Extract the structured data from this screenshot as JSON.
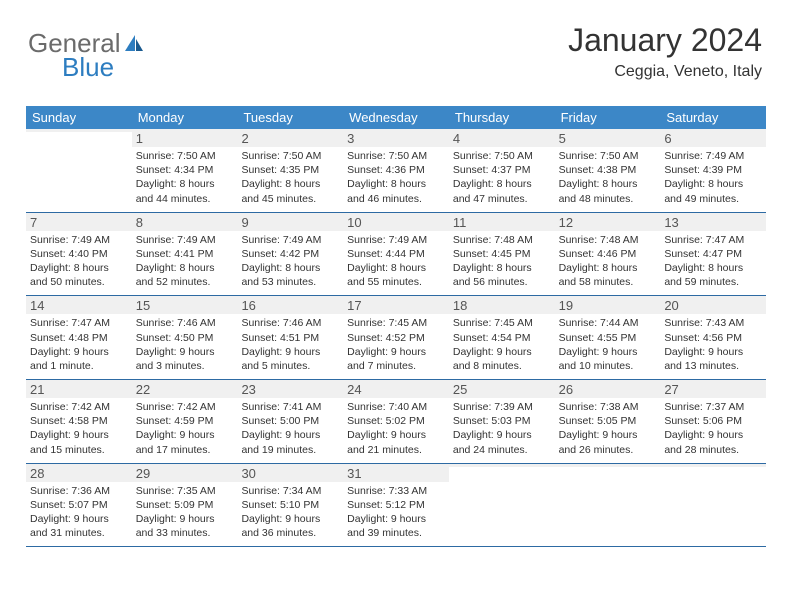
{
  "logo": {
    "text1": "General",
    "text2": "Blue"
  },
  "title": "January 2024",
  "location": "Ceggia, Veneto, Italy",
  "colors": {
    "header_bg": "#3c87c7",
    "header_text": "#ffffff",
    "border": "#2d6aa3",
    "daynum_bg": "#f0f0f0",
    "text": "#333333",
    "logo_gray": "#6b6b6b",
    "logo_blue": "#2d7dc0"
  },
  "day_names": [
    "Sunday",
    "Monday",
    "Tuesday",
    "Wednesday",
    "Thursday",
    "Friday",
    "Saturday"
  ],
  "weeks": [
    [
      {
        "n": "",
        "sr": "",
        "ss": "",
        "dl": ""
      },
      {
        "n": "1",
        "sr": "Sunrise: 7:50 AM",
        "ss": "Sunset: 4:34 PM",
        "dl": "Daylight: 8 hours and 44 minutes."
      },
      {
        "n": "2",
        "sr": "Sunrise: 7:50 AM",
        "ss": "Sunset: 4:35 PM",
        "dl": "Daylight: 8 hours and 45 minutes."
      },
      {
        "n": "3",
        "sr": "Sunrise: 7:50 AM",
        "ss": "Sunset: 4:36 PM",
        "dl": "Daylight: 8 hours and 46 minutes."
      },
      {
        "n": "4",
        "sr": "Sunrise: 7:50 AM",
        "ss": "Sunset: 4:37 PM",
        "dl": "Daylight: 8 hours and 47 minutes."
      },
      {
        "n": "5",
        "sr": "Sunrise: 7:50 AM",
        "ss": "Sunset: 4:38 PM",
        "dl": "Daylight: 8 hours and 48 minutes."
      },
      {
        "n": "6",
        "sr": "Sunrise: 7:49 AM",
        "ss": "Sunset: 4:39 PM",
        "dl": "Daylight: 8 hours and 49 minutes."
      }
    ],
    [
      {
        "n": "7",
        "sr": "Sunrise: 7:49 AM",
        "ss": "Sunset: 4:40 PM",
        "dl": "Daylight: 8 hours and 50 minutes."
      },
      {
        "n": "8",
        "sr": "Sunrise: 7:49 AM",
        "ss": "Sunset: 4:41 PM",
        "dl": "Daylight: 8 hours and 52 minutes."
      },
      {
        "n": "9",
        "sr": "Sunrise: 7:49 AM",
        "ss": "Sunset: 4:42 PM",
        "dl": "Daylight: 8 hours and 53 minutes."
      },
      {
        "n": "10",
        "sr": "Sunrise: 7:49 AM",
        "ss": "Sunset: 4:44 PM",
        "dl": "Daylight: 8 hours and 55 minutes."
      },
      {
        "n": "11",
        "sr": "Sunrise: 7:48 AM",
        "ss": "Sunset: 4:45 PM",
        "dl": "Daylight: 8 hours and 56 minutes."
      },
      {
        "n": "12",
        "sr": "Sunrise: 7:48 AM",
        "ss": "Sunset: 4:46 PM",
        "dl": "Daylight: 8 hours and 58 minutes."
      },
      {
        "n": "13",
        "sr": "Sunrise: 7:47 AM",
        "ss": "Sunset: 4:47 PM",
        "dl": "Daylight: 8 hours and 59 minutes."
      }
    ],
    [
      {
        "n": "14",
        "sr": "Sunrise: 7:47 AM",
        "ss": "Sunset: 4:48 PM",
        "dl": "Daylight: 9 hours and 1 minute."
      },
      {
        "n": "15",
        "sr": "Sunrise: 7:46 AM",
        "ss": "Sunset: 4:50 PM",
        "dl": "Daylight: 9 hours and 3 minutes."
      },
      {
        "n": "16",
        "sr": "Sunrise: 7:46 AM",
        "ss": "Sunset: 4:51 PM",
        "dl": "Daylight: 9 hours and 5 minutes."
      },
      {
        "n": "17",
        "sr": "Sunrise: 7:45 AM",
        "ss": "Sunset: 4:52 PM",
        "dl": "Daylight: 9 hours and 7 minutes."
      },
      {
        "n": "18",
        "sr": "Sunrise: 7:45 AM",
        "ss": "Sunset: 4:54 PM",
        "dl": "Daylight: 9 hours and 8 minutes."
      },
      {
        "n": "19",
        "sr": "Sunrise: 7:44 AM",
        "ss": "Sunset: 4:55 PM",
        "dl": "Daylight: 9 hours and 10 minutes."
      },
      {
        "n": "20",
        "sr": "Sunrise: 7:43 AM",
        "ss": "Sunset: 4:56 PM",
        "dl": "Daylight: 9 hours and 13 minutes."
      }
    ],
    [
      {
        "n": "21",
        "sr": "Sunrise: 7:42 AM",
        "ss": "Sunset: 4:58 PM",
        "dl": "Daylight: 9 hours and 15 minutes."
      },
      {
        "n": "22",
        "sr": "Sunrise: 7:42 AM",
        "ss": "Sunset: 4:59 PM",
        "dl": "Daylight: 9 hours and 17 minutes."
      },
      {
        "n": "23",
        "sr": "Sunrise: 7:41 AM",
        "ss": "Sunset: 5:00 PM",
        "dl": "Daylight: 9 hours and 19 minutes."
      },
      {
        "n": "24",
        "sr": "Sunrise: 7:40 AM",
        "ss": "Sunset: 5:02 PM",
        "dl": "Daylight: 9 hours and 21 minutes."
      },
      {
        "n": "25",
        "sr": "Sunrise: 7:39 AM",
        "ss": "Sunset: 5:03 PM",
        "dl": "Daylight: 9 hours and 24 minutes."
      },
      {
        "n": "26",
        "sr": "Sunrise: 7:38 AM",
        "ss": "Sunset: 5:05 PM",
        "dl": "Daylight: 9 hours and 26 minutes."
      },
      {
        "n": "27",
        "sr": "Sunrise: 7:37 AM",
        "ss": "Sunset: 5:06 PM",
        "dl": "Daylight: 9 hours and 28 minutes."
      }
    ],
    [
      {
        "n": "28",
        "sr": "Sunrise: 7:36 AM",
        "ss": "Sunset: 5:07 PM",
        "dl": "Daylight: 9 hours and 31 minutes."
      },
      {
        "n": "29",
        "sr": "Sunrise: 7:35 AM",
        "ss": "Sunset: 5:09 PM",
        "dl": "Daylight: 9 hours and 33 minutes."
      },
      {
        "n": "30",
        "sr": "Sunrise: 7:34 AM",
        "ss": "Sunset: 5:10 PM",
        "dl": "Daylight: 9 hours and 36 minutes."
      },
      {
        "n": "31",
        "sr": "Sunrise: 7:33 AM",
        "ss": "Sunset: 5:12 PM",
        "dl": "Daylight: 9 hours and 39 minutes."
      },
      {
        "n": "",
        "sr": "",
        "ss": "",
        "dl": ""
      },
      {
        "n": "",
        "sr": "",
        "ss": "",
        "dl": ""
      },
      {
        "n": "",
        "sr": "",
        "ss": "",
        "dl": ""
      }
    ]
  ]
}
